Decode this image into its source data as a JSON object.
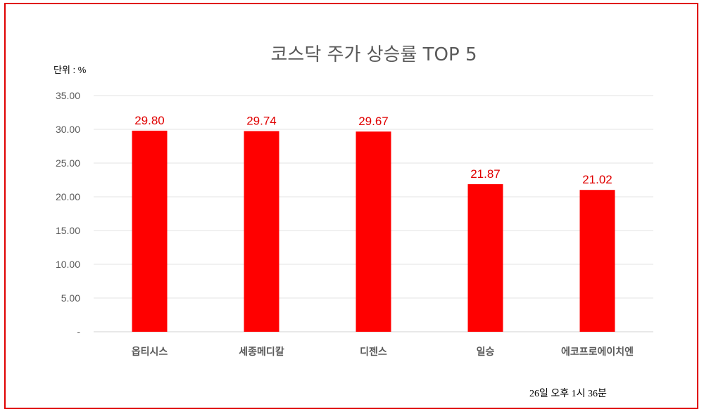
{
  "chart_data": {
    "type": "bar",
    "title": "코스닥 주가 상승률 TOP 5",
    "unit_label": "단위 : %",
    "categories": [
      "옵티시스",
      "세종메디칼",
      "디젠스",
      "일승",
      "에코프로에이치엔"
    ],
    "values": [
      29.8,
      29.74,
      29.67,
      21.87,
      21.02
    ],
    "data_labels": [
      "29.80",
      "29.74",
      "29.67",
      "21.87",
      "21.02"
    ],
    "ylim": [
      0,
      35
    ],
    "yticks": [
      0,
      5,
      10,
      15,
      20,
      25,
      30,
      35
    ],
    "ytick_labels": [
      "-",
      "5.00",
      "10.00",
      "15.00",
      "20.00",
      "25.00",
      "30.00",
      "35.00"
    ],
    "grid": true,
    "legend": "none",
    "bar_color": "#ff0000",
    "label_color": "#e00000",
    "frame_color": "#e00000",
    "footnote": "26일  오후 1시 36분"
  }
}
